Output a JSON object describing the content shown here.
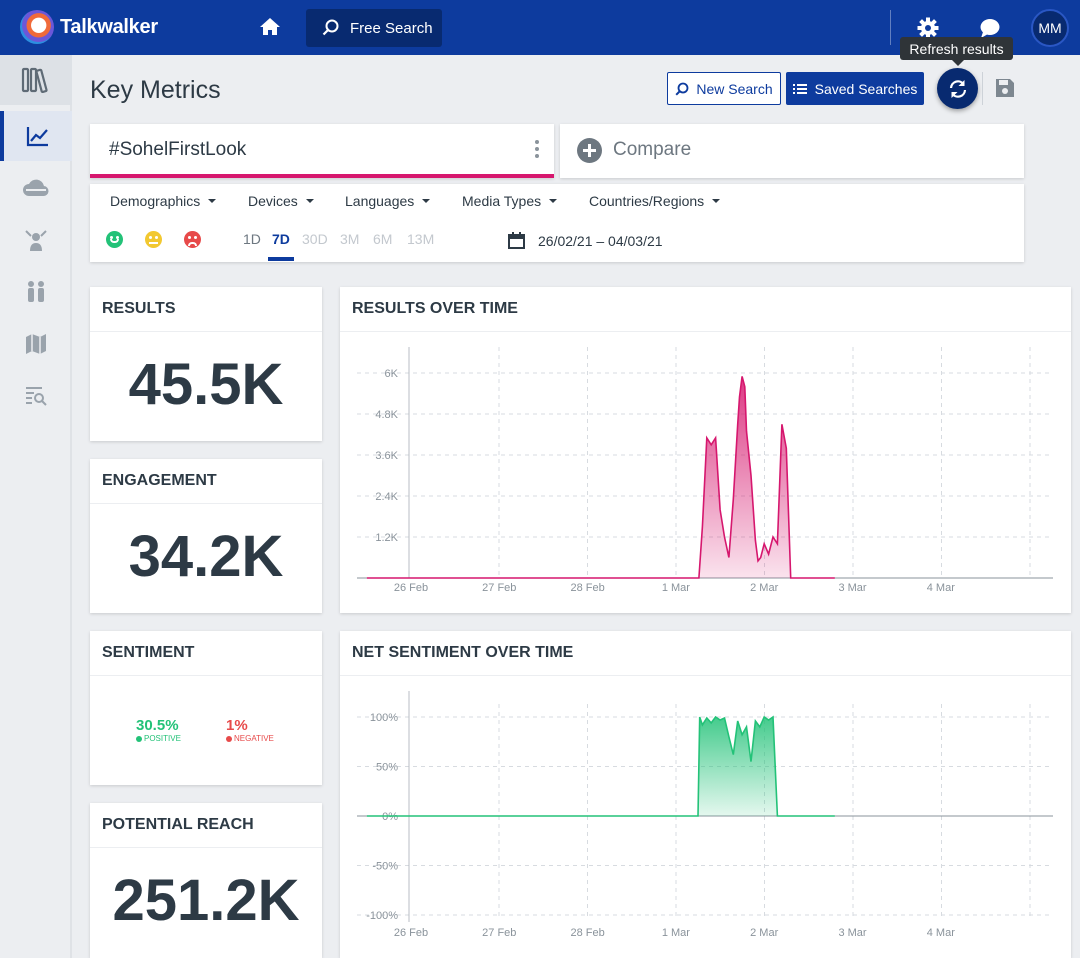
{
  "brand": {
    "name": "Talkwalker"
  },
  "topnav": {
    "free_search_label": "Free Search",
    "avatar_initials": "MM"
  },
  "tooltip": {
    "refresh": "Refresh results"
  },
  "header": {
    "title": "Key Metrics",
    "new_search_label": "New Search",
    "saved_searches_label": "Saved Searches"
  },
  "query": {
    "name": "#SohelFirstLook",
    "compare_label": "Compare"
  },
  "filters": {
    "dropdowns": [
      "Demographics",
      "Devices",
      "Languages",
      "Media Types",
      "Countries/Regions"
    ],
    "periods": [
      "1D",
      "7D",
      "30D",
      "3M",
      "6M",
      "13M"
    ],
    "selected_period": "7D",
    "date_range": "26/02/21 – 04/03/21"
  },
  "colors": {
    "brand": "#0d3b9e",
    "accent": "#d6176e",
    "positive": "#23c278",
    "negative": "#e74a4a"
  },
  "cards": {
    "results": {
      "title": "RESULTS",
      "value": "45.5K"
    },
    "engagement": {
      "title": "ENGAGEMENT",
      "value": "34.2K"
    },
    "sentiment": {
      "title": "SENTIMENT",
      "positive_value": "30.5%",
      "positive_label": "POSITIVE",
      "negative_value": "1%",
      "negative_label": "NEGATIVE"
    },
    "reach": {
      "title": "POTENTIAL REACH",
      "value": "251.2K"
    }
  },
  "chart_data": [
    {
      "type": "area",
      "title": "RESULTS OVER TIME",
      "x_ticks": [
        "26 Feb",
        "27 Feb",
        "28 Feb",
        "1 Mar",
        "2 Mar",
        "3 Mar",
        "4 Mar"
      ],
      "y_ticks": [
        "1.2K",
        "2.4K",
        "3.6K",
        "4.8K",
        "6K"
      ],
      "ylim": [
        0,
        6000
      ],
      "color": "#d6176e",
      "x": [
        -0.5,
        3.2,
        3.26,
        3.3,
        3.35,
        3.4,
        3.45,
        3.5,
        3.55,
        3.6,
        3.65,
        3.7,
        3.72,
        3.75,
        3.78,
        3.8,
        3.85,
        3.9,
        3.93,
        3.96,
        4.0,
        4.05,
        4.1,
        4.15,
        4.2,
        4.25,
        4.3,
        4.8
      ],
      "series": [
        {
          "values": [
            0,
            0,
            0,
            1500,
            4100,
            3900,
            4100,
            2000,
            1200,
            600,
            2300,
            4500,
            5300,
            5900,
            5600,
            4300,
            3000,
            1100,
            500,
            600,
            1000,
            700,
            1200,
            1000,
            4500,
            3800,
            0,
            0
          ]
        }
      ]
    },
    {
      "type": "area",
      "title": "NET SENTIMENT OVER TIME",
      "x_ticks": [
        "26 Feb",
        "27 Feb",
        "28 Feb",
        "1 Mar",
        "2 Mar",
        "3 Mar",
        "4 Mar"
      ],
      "y_ticks": [
        "100%",
        "50%",
        "0%",
        "-50%",
        "-100%"
      ],
      "ylim": [
        -100,
        100
      ],
      "color": "#23c278",
      "x": [
        -0.5,
        3.2,
        3.25,
        3.27,
        3.3,
        3.35,
        3.4,
        3.45,
        3.5,
        3.55,
        3.6,
        3.65,
        3.7,
        3.75,
        3.8,
        3.85,
        3.9,
        3.95,
        4.0,
        4.05,
        4.1,
        4.15,
        4.2,
        4.8
      ],
      "series": [
        {
          "values": [
            0,
            0,
            0,
            100,
            92,
            99,
            94,
            100,
            97,
            99,
            80,
            62,
            96,
            82,
            90,
            55,
            96,
            90,
            100,
            97,
            100,
            0,
            0,
            0
          ]
        }
      ]
    }
  ]
}
